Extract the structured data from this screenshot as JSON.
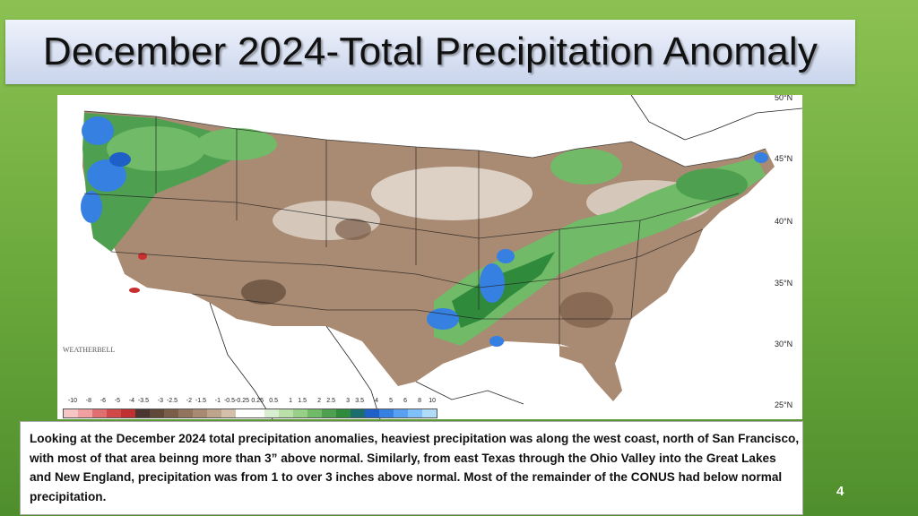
{
  "slide": {
    "title": "December 2024-Total Precipitation Anomaly",
    "number": "4"
  },
  "map": {
    "latitude_labels": [
      "50°N",
      "45°N",
      "40°N",
      "35°N",
      "30°N",
      "25°N"
    ],
    "logo_text": "WEATHERBELL",
    "legend": {
      "values": [
        "-10",
        "-8",
        "-6",
        "-5",
        "-4",
        "-3.5",
        "-3",
        "-2.5",
        "-2",
        "-1.5",
        "-1",
        "-0.5",
        "-0.25",
        "0.25",
        "0.5",
        "1",
        "1.5",
        "2",
        "2.5",
        "3",
        "3.5",
        "4",
        "5",
        "6",
        "8",
        "10"
      ],
      "colors": [
        "#f6c6c6",
        "#f0a0a0",
        "#e07070",
        "#d04848",
        "#c03030",
        "#4a3530",
        "#604838",
        "#7a5d48",
        "#92735e",
        "#a88a72",
        "#bfa48c",
        "#d4c0aa",
        "#ffffff",
        "#ffffff",
        "#d8eed0",
        "#b8e0a8",
        "#98d088",
        "#70ba68",
        "#4ea050",
        "#2f8a3c",
        "#1a6e6e",
        "#1f5fc8",
        "#3580e0",
        "#5aa0f0",
        "#80c0f8",
        "#b0dcfa"
      ]
    },
    "colors": {
      "below_normal": "#a98a72",
      "near_normal": "#f4f0ea",
      "above_normal": "#4ea050",
      "much_above": "#3580e0",
      "extreme_deficit": "#c83030"
    }
  },
  "caption": {
    "text": "Looking at the December 2024 total precipitation anomalies, heaviest precipitation was along the west coast, north of San Francisco, with most of that area beinng more than 3” above normal.  Similarly, from east Texas through the Ohio Valley into the Great Lakes and New England, precipitation was from 1 to over 3 inches above normal.  Most of the remainder of the CONUS had below normal precipitation."
  }
}
